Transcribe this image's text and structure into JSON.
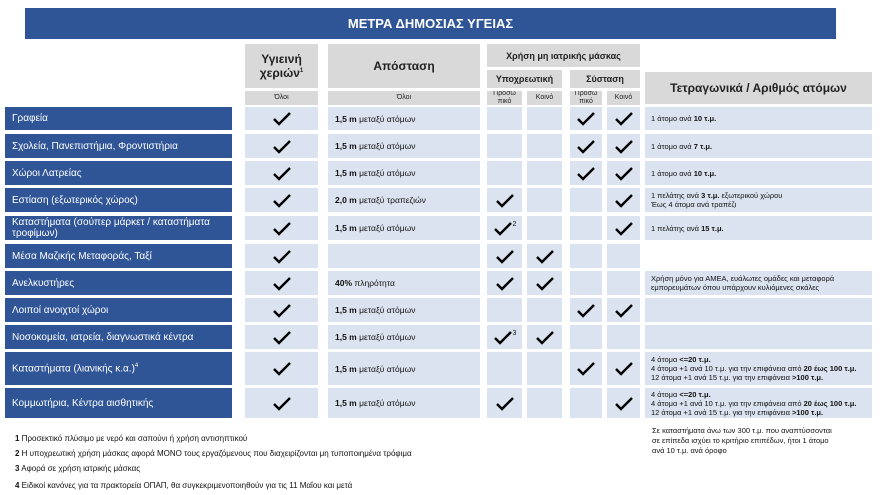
{
  "header": {
    "title": "ΜΕΤΡΑ ΔΗΜΟΣΙΑΣ ΥΓΕΙΑΣ"
  },
  "columns": {
    "hygiene": {
      "label": "Υγιεινή χεριών",
      "sup": "1",
      "sub": "Όλοι"
    },
    "distance": {
      "label": "Απόσταση",
      "sub": "Όλοι"
    },
    "mask": {
      "label": "Χρήση μη ιατρικής μάσκας",
      "mandatory": {
        "label": "Υποχρεωτική",
        "personal": "Προσω πικό",
        "common": "Κοινό"
      },
      "recommended": {
        "label": "Σύσταση",
        "personal": "Προσω πικό",
        "common": "Κοινό"
      }
    },
    "area": {
      "label": "Τετραγωνικά / Αριθμός ατόμων"
    }
  },
  "rows": [
    {
      "label": "Γραφεία",
      "checks": [
        true,
        false,
        false,
        true,
        true
      ],
      "check_notes": [
        null,
        null,
        null,
        null,
        null
      ],
      "distance": {
        "bold": "1,5 m",
        "text": " μεταξύ ατόμων"
      },
      "area": [
        [
          {
            "text": "1 άτομο ανά ",
            "bold": false
          },
          {
            "text": "10 τ.μ.",
            "bold": true
          }
        ]
      ]
    },
    {
      "label": "Σχολεία, Πανεπιστήμια, Φροντιστήρια",
      "checks": [
        true,
        false,
        false,
        true,
        true
      ],
      "check_notes": [
        null,
        null,
        null,
        null,
        null
      ],
      "distance": {
        "bold": "1,5 m",
        "text": " μεταξύ ατόμων"
      },
      "area": [
        [
          {
            "text": "1 άτομο ανά ",
            "bold": false
          },
          {
            "text": "7 τ.μ.",
            "bold": true
          }
        ]
      ]
    },
    {
      "label": "Χώροι Λατρείας",
      "checks": [
        true,
        false,
        false,
        true,
        true
      ],
      "check_notes": [
        null,
        null,
        null,
        null,
        null
      ],
      "distance": {
        "bold": "1,5 m",
        "text": " μεταξύ ατόμων"
      },
      "area": [
        [
          {
            "text": "1 άτομο ανά ",
            "bold": false
          },
          {
            "text": "10 τ.μ.",
            "bold": true
          }
        ]
      ]
    },
    {
      "label": "Εστίαση",
      "note": " (εξωτερικός χώρος)",
      "checks": [
        true,
        true,
        false,
        false,
        true
      ],
      "check_notes": [
        null,
        null,
        null,
        null,
        null
      ],
      "distance": {
        "bold": "2,0 m",
        "text": " μεταξύ τραπεζιών"
      },
      "area": [
        [
          {
            "text": "1 πελάτης ανά ",
            "bold": false
          },
          {
            "text": "3 τ.μ.",
            "bold": true
          },
          {
            "text": " εξωτερικού χώρου",
            "bold": false
          }
        ],
        [
          {
            "text": "Έως 4 άτομα ανά τραπέζι",
            "bold": false
          }
        ]
      ]
    },
    {
      "label": "Καταστήματα",
      "note": " (σούπερ μάρκετ / καταστήματα τροφίμων)",
      "checks": [
        true,
        true,
        false,
        false,
        true
      ],
      "check_notes": [
        null,
        "2",
        null,
        null,
        null
      ],
      "distance": {
        "bold": "1,5 m",
        "text": " μεταξύ ατόμων"
      },
      "area": [
        [
          {
            "text": "1 πελάτης ανά ",
            "bold": false
          },
          {
            "text": "15 τ.μ.",
            "bold": true
          }
        ]
      ]
    },
    {
      "label": "Μέσα Μαζικής Μεταφοράς, Ταξί",
      "checks": [
        true,
        true,
        true,
        false,
        false
      ],
      "check_notes": [
        null,
        null,
        null,
        null,
        null
      ],
      "distance": null,
      "area": null
    },
    {
      "label": "Ανελκυστήρες",
      "checks": [
        true,
        true,
        true,
        false,
        false
      ],
      "check_notes": [
        null,
        null,
        null,
        null,
        null
      ],
      "distance": {
        "bold": "40%",
        "text": " πληρότητα"
      },
      "area": [
        [
          {
            "text": "Χρήση μόνο για ΑΜΕΑ, ευάλωτες ομάδες και μεταφορά",
            "bold": false
          }
        ],
        [
          {
            "text": "εμπορευμάτων όπου υπάρχουν κυλιόμενες σκάλες",
            "bold": false
          }
        ]
      ]
    },
    {
      "label": "Λοιποί ανοιχτοί χώροι",
      "checks": [
        true,
        false,
        false,
        true,
        true
      ],
      "check_notes": [
        null,
        null,
        null,
        null,
        null
      ],
      "distance": {
        "bold": "1,5 m",
        "text": " μεταξύ ατόμων"
      },
      "area": null
    },
    {
      "label": "Νοσοκομεία, ιατρεία, διαγνωστικά κέντρα",
      "checks": [
        true,
        true,
        true,
        false,
        false
      ],
      "check_notes": [
        null,
        "3",
        null,
        null,
        null
      ],
      "distance": {
        "bold": "1,5 m",
        "text": " μεταξύ ατόμων"
      },
      "area": null
    },
    {
      "label": "Καταστήματα",
      "note": " (λιανικής κ.α.)",
      "sup": "4",
      "checks": [
        true,
        false,
        false,
        true,
        true
      ],
      "check_notes": [
        null,
        null,
        null,
        null,
        null
      ],
      "distance": {
        "bold": "1,5 m",
        "text": " μεταξύ ατόμων"
      },
      "area": [
        [
          {
            "text": "4 άτομα ",
            "bold": false
          },
          {
            "text": "<=20 τ.μ.",
            "bold": true
          }
        ],
        [
          {
            "text": "4 άτομα +1 ανά 10 τ.μ. για την επιφάνεια από ",
            "bold": false
          },
          {
            "text": "20 έως 100 τ.μ.",
            "bold": true
          }
        ],
        [
          {
            "text": "12 άτομα +1 ανά 15 τ.μ. για την επιφάνεια ",
            "bold": false
          },
          {
            "text": ">100 τ.μ.",
            "bold": true
          }
        ]
      ]
    },
    {
      "label": "Κομμωτήρια, Κέντρα αισθητικής",
      "checks": [
        true,
        true,
        false,
        false,
        true
      ],
      "check_notes": [
        null,
        null,
        null,
        null,
        null
      ],
      "distance": {
        "bold": "1,5 m",
        "text": " μεταξύ ατόμων"
      },
      "area": [
        [
          {
            "text": "4 άτομα ",
            "bold": false
          },
          {
            "text": "<=20 τ.μ.",
            "bold": true
          }
        ],
        [
          {
            "text": "4 άτομα +1 ανά 10 τ.μ. για την επιφάνεια από ",
            "bold": false
          },
          {
            "text": "20 έως 100 τ.μ.",
            "bold": true
          }
        ],
        [
          {
            "text": "12 άτομα +1 ανά 15 τ.μ. για την επιφάνεια ",
            "bold": false
          },
          {
            "text": ">100 τ.μ.",
            "bold": true
          }
        ]
      ]
    }
  ],
  "side_note": [
    "Σε καταστήματα άνω των 300 τ.μ. που αναπτύσσονται",
    "σε επίπεδα ισχύει το κριτήριο επιπέδων, ήτοι 1 άτομο",
    "ανά 10 τ.μ. ανά όροφο"
  ],
  "footnotes": [
    {
      "num": "1",
      "text": " Προσεκτικό πλύσιμο με νερό και σαπούνι ή χρήση αντισηπτικού"
    },
    {
      "num": "2",
      "text": " Η υποχρεωτική χρήση μάσκας αφορά ΜΟΝΟ τους εργαζόμενους που διαχειρίζονται μη τυποποιημένα τρόφιμα"
    },
    {
      "num": "3",
      "text": " Αφορά σε χρήση ιατρικής μάσκας"
    },
    {
      "num": "4",
      "text": " Ειδικοί κανόνες για τα πρακτορεία ΟΠΑΠ, θα συγκεκριμενοποιηθούν για τις 11 Μαΐου και μετά"
    }
  ]
}
